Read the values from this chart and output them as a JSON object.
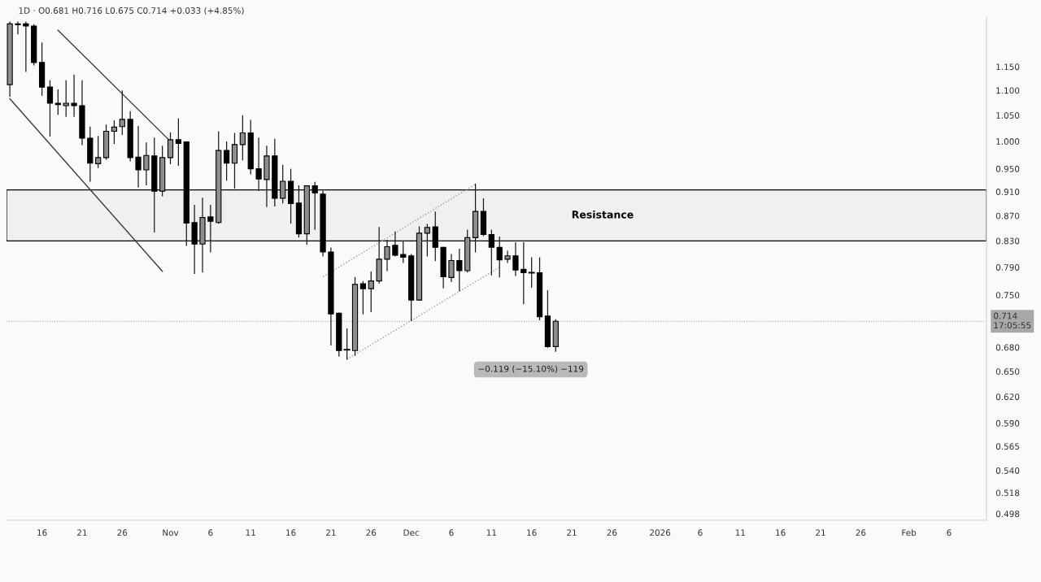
{
  "chart_data": {
    "type": "candlestick",
    "title": "1D · O0.681 H0.716 L0.675 C0.714 +0.033 (+4.85%)",
    "x": [
      "2025-10-12",
      "2025-10-13",
      "2025-10-14",
      "2025-10-15",
      "2025-10-16",
      "2025-10-17",
      "2025-10-18",
      "2025-10-19",
      "2025-10-20",
      "2025-10-21",
      "2025-10-22",
      "2025-10-23",
      "2025-10-24",
      "2025-10-25",
      "2025-10-26",
      "2025-10-27",
      "2025-10-28",
      "2025-10-29",
      "2025-10-30",
      "2025-10-31",
      "2025-11-01",
      "2025-11-02",
      "2025-11-03",
      "2025-11-04",
      "2025-11-05",
      "2025-11-06",
      "2025-11-07",
      "2025-11-08",
      "2025-11-09",
      "2025-11-10",
      "2025-11-11",
      "2025-11-12",
      "2025-11-13",
      "2025-11-14",
      "2025-11-15",
      "2025-11-16",
      "2025-11-17",
      "2025-11-18",
      "2025-11-19",
      "2025-11-20",
      "2025-11-21",
      "2025-11-22",
      "2025-11-23",
      "2025-11-24",
      "2025-11-25",
      "2025-11-26",
      "2025-11-27",
      "2025-11-28",
      "2025-11-29",
      "2025-11-30",
      "2025-12-01",
      "2025-12-02",
      "2025-12-03",
      "2025-12-04",
      "2025-12-05",
      "2025-12-06",
      "2025-12-07",
      "2025-12-08",
      "2025-12-09",
      "2025-12-10",
      "2025-12-11",
      "2025-12-12",
      "2025-12-13",
      "2025-12-14",
      "2025-12-15",
      "2025-12-16",
      "2025-12-17",
      "2025-12-18",
      "2025-12-19"
    ],
    "ohlc": [
      [
        1.112,
        1.25,
        1.088,
        1.246
      ],
      [
        1.246,
        1.25,
        1.223,
        1.244
      ],
      [
        1.246,
        1.25,
        1.14,
        1.241
      ],
      [
        1.241,
        1.244,
        1.154,
        1.159
      ],
      [
        1.159,
        1.202,
        1.09,
        1.107
      ],
      [
        1.107,
        1.12,
        1.01,
        1.074
      ],
      [
        1.074,
        1.101,
        1.052,
        1.071
      ],
      [
        1.069,
        1.12,
        1.048,
        1.074
      ],
      [
        1.074,
        1.132,
        1.048,
        1.069
      ],
      [
        1.069,
        1.12,
        0.994,
        1.006
      ],
      [
        1.006,
        1.027,
        0.928,
        0.96
      ],
      [
        0.959,
        1.009,
        0.952,
        0.97
      ],
      [
        0.97,
        1.031,
        0.967,
        1.019
      ],
      [
        1.019,
        1.039,
        0.996,
        1.027
      ],
      [
        1.028,
        1.099,
        1.013,
        1.042
      ],
      [
        1.042,
        1.057,
        0.964,
        0.97
      ],
      [
        0.971,
        1.028,
        0.918,
        0.948
      ],
      [
        0.948,
        0.997,
        0.922,
        0.974
      ],
      [
        0.973,
        1.006,
        0.844,
        0.911
      ],
      [
        0.911,
        0.991,
        0.903,
        0.97
      ],
      [
        0.97,
        1.016,
        0.959,
        1.003
      ],
      [
        1.003,
        1.043,
        0.956,
        0.996
      ],
      [
        0.999,
        0.999,
        0.823,
        0.858
      ],
      [
        0.859,
        0.887,
        0.781,
        0.825
      ],
      [
        0.825,
        0.899,
        0.783,
        0.867
      ],
      [
        0.868,
        0.887,
        0.813,
        0.861
      ],
      [
        0.859,
        1.018,
        0.858,
        0.983
      ],
      [
        0.983,
        0.999,
        0.93,
        0.96
      ],
      [
        0.96,
        1.015,
        0.916,
        0.994
      ],
      [
        0.994,
        1.049,
        0.966,
        1.016
      ],
      [
        1.016,
        1.04,
        0.941,
        0.95
      ],
      [
        0.95,
        1.006,
        0.912,
        0.932
      ],
      [
        0.931,
        0.991,
        0.885,
        0.973
      ],
      [
        0.973,
        1.004,
        0.886,
        0.899
      ],
      [
        0.899,
        0.956,
        0.891,
        0.928
      ],
      [
        0.928,
        0.949,
        0.858,
        0.89
      ],
      [
        0.891,
        0.92,
        0.836,
        0.841
      ],
      [
        0.841,
        0.92,
        0.825,
        0.92
      ],
      [
        0.92,
        0.926,
        0.848,
        0.908
      ],
      [
        0.906,
        0.911,
        0.807,
        0.813
      ],
      [
        0.813,
        0.819,
        0.683,
        0.724
      ],
      [
        0.725,
        0.725,
        0.669,
        0.676
      ],
      [
        0.677,
        0.704,
        0.665,
        0.677
      ],
      [
        0.676,
        0.775,
        0.67,
        0.765
      ],
      [
        0.766,
        0.769,
        0.724,
        0.759
      ],
      [
        0.759,
        0.783,
        0.727,
        0.77
      ],
      [
        0.77,
        0.851,
        0.767,
        0.802
      ],
      [
        0.802,
        0.831,
        0.785,
        0.821
      ],
      [
        0.823,
        0.844,
        0.807,
        0.808
      ],
      [
        0.809,
        0.829,
        0.797,
        0.805
      ],
      [
        0.807,
        0.809,
        0.715,
        0.743
      ],
      [
        0.743,
        0.852,
        0.743,
        0.842
      ],
      [
        0.842,
        0.856,
        0.807,
        0.851
      ],
      [
        0.852,
        0.876,
        0.8,
        0.82
      ],
      [
        0.82,
        0.82,
        0.76,
        0.776
      ],
      [
        0.775,
        0.809,
        0.769,
        0.8
      ],
      [
        0.8,
        0.817,
        0.756,
        0.785
      ],
      [
        0.785,
        0.847,
        0.783,
        0.835
      ],
      [
        0.835,
        0.923,
        0.813,
        0.877
      ],
      [
        0.877,
        0.898,
        0.838,
        0.84
      ],
      [
        0.84,
        0.847,
        0.779,
        0.82
      ],
      [
        0.82,
        0.836,
        0.776,
        0.801
      ],
      [
        0.802,
        0.814,
        0.797,
        0.807
      ],
      [
        0.807,
        0.827,
        0.778,
        0.786
      ],
      [
        0.787,
        0.827,
        0.738,
        0.782
      ],
      [
        0.782,
        0.804,
        0.761,
        0.782
      ],
      [
        0.782,
        0.804,
        0.716,
        0.72
      ],
      [
        0.721,
        0.756,
        0.68,
        0.681
      ],
      [
        0.681,
        0.716,
        0.675,
        0.714
      ]
    ],
    "series": [
      {
        "type": "line",
        "x": [
          "2025-10-18",
          "2025-11-01"
        ],
        "values": [
          1.231,
          1.0
        ],
        "color": "#3a3a3a",
        "line_style": "solid"
      },
      {
        "type": "line",
        "x": [
          "2025-10-12",
          "2025-10-31"
        ],
        "values": [
          1.083,
          0.784
        ],
        "color": "#3a3a3a",
        "line_style": "solid"
      },
      {
        "type": "line",
        "x": [
          "2025-11-20",
          "2025-12-09"
        ],
        "values": [
          0.776,
          0.923
        ],
        "color": "#9a9a9a",
        "line_style": "dotted"
      },
      {
        "type": "line",
        "x": [
          "2025-11-23",
          "2025-12-12"
        ],
        "values": [
          0.665,
          0.79
        ],
        "color": "#9a9a9a",
        "line_style": "dotted"
      }
    ],
    "log": true,
    "xlim": [
      "2025-10-11T14:00",
      "2026-02-10T16:00"
    ],
    "xticks": [
      {
        "value": "2025-10-16",
        "label": "16"
      },
      {
        "value": "2025-10-21",
        "label": "21"
      },
      {
        "value": "2025-10-26",
        "label": "26"
      },
      {
        "value": "2025-11-01",
        "label": "Nov"
      },
      {
        "value": "2025-11-06",
        "label": "6"
      },
      {
        "value": "2025-11-11",
        "label": "11"
      },
      {
        "value": "2025-11-16",
        "label": "16"
      },
      {
        "value": "2025-11-21",
        "label": "21"
      },
      {
        "value": "2025-11-26",
        "label": "26"
      },
      {
        "value": "2025-12-01",
        "label": "Dec"
      },
      {
        "value": "2025-12-06",
        "label": "6"
      },
      {
        "value": "2025-12-11",
        "label": "11"
      },
      {
        "value": "2025-12-16",
        "label": "16"
      },
      {
        "value": "2025-12-21",
        "label": "21"
      },
      {
        "value": "2025-12-26",
        "label": "26"
      },
      {
        "value": "2026-01-01",
        "label": "2026"
      },
      {
        "value": "2026-01-06",
        "label": "6"
      },
      {
        "value": "2026-01-11",
        "label": "11"
      },
      {
        "value": "2026-01-16",
        "label": "16"
      },
      {
        "value": "2026-01-21",
        "label": "21"
      },
      {
        "value": "2026-01-26",
        "label": "26"
      },
      {
        "value": "2026-02-01",
        "label": "Feb"
      },
      {
        "value": "2026-02-06",
        "label": "6"
      }
    ],
    "ylim": [
      0.492,
      1.26
    ],
    "yticks": [
      {
        "value": 0.498,
        "label": "0.498"
      },
      {
        "value": 0.518,
        "label": "0.518"
      },
      {
        "value": 0.54,
        "label": "0.540"
      },
      {
        "value": 0.565,
        "label": "0.565"
      },
      {
        "value": 0.59,
        "label": "0.590"
      },
      {
        "value": 0.62,
        "label": "0.620"
      },
      {
        "value": 0.65,
        "label": "0.650"
      },
      {
        "value": 0.68,
        "label": "0.680"
      },
      {
        "value": 0.75,
        "label": "0.750"
      },
      {
        "value": 0.79,
        "label": "0.790"
      },
      {
        "value": 0.83,
        "label": "0.830"
      },
      {
        "value": 0.87,
        "label": "0.870"
      },
      {
        "value": 0.91,
        "label": "0.910"
      },
      {
        "value": 0.95,
        "label": "0.950"
      },
      {
        "value": 1.0,
        "label": "1.000"
      },
      {
        "value": 1.05,
        "label": "1.050"
      },
      {
        "value": 1.1,
        "label": "1.100"
      },
      {
        "value": 1.15,
        "label": "1.150"
      }
    ],
    "bands": [
      {
        "axis": "y",
        "from": 0.83,
        "to": 0.913,
        "label": "Resistance",
        "color": "#000000"
      }
    ],
    "ref_lines": [
      {
        "axis": "y",
        "value": 0.714,
        "label": "0.714\n17:05:55",
        "color": "#9e9e9e",
        "line_style": "dotted"
      }
    ],
    "annotations": [
      "−0.119 (−15.10%) −119"
    ],
    "grid": false
  }
}
